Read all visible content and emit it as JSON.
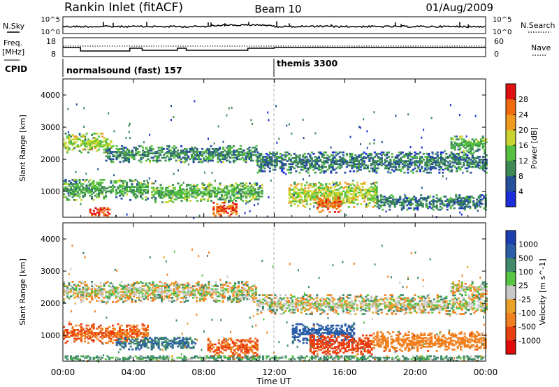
{
  "header": {
    "station": "Rankin Inlet (fitACF)",
    "beam": "Beam 10",
    "date": "01/Aug/2009"
  },
  "noise_panel": {
    "left_label": "N.Sky",
    "right_label": "N.Search",
    "left_ticks": [
      "10^5",
      "10^0"
    ],
    "right_ticks": [
      "10^5",
      "10^0"
    ]
  },
  "freq_panel": {
    "left_label_1": "Freq.",
    "left_label_2": "[MHz]",
    "right_label": "Nave",
    "left_ticks": [
      "18",
      "8"
    ],
    "right_ticks": [
      "60",
      "0"
    ]
  },
  "cpid_panel": {
    "label": "CPID",
    "segments": [
      {
        "name": "normalsound (fast) 157",
        "start_hour": 0
      },
      {
        "name": "themis 3300",
        "start_hour": 12
      }
    ]
  },
  "time_axis": {
    "label": "Time UT",
    "ticks": [
      "00:00",
      "04:00",
      "08:00",
      "12:00",
      "16:00",
      "20:00",
      "00:00"
    ]
  },
  "colors": {
    "power_scale": [
      "#1a2fd9",
      "#27509a",
      "#3d8a55",
      "#55c040",
      "#c9d430",
      "#f09a20",
      "#f06a10",
      "#e01010"
    ],
    "velocity_scale": [
      "#1c3fb0",
      "#2c5ea8",
      "#3f8a6a",
      "#57c444",
      "#c8c8c8",
      "#e8a028",
      "#f08020",
      "#e84010",
      "#e00a0a"
    ]
  },
  "chart_data": [
    {
      "type": "heatmap",
      "panel": "power",
      "ylabel": "Slant Range [km]",
      "ytick_labels": [
        "1000",
        "2000",
        "3000",
        "4000"
      ],
      "ylim": [
        200,
        4500
      ],
      "xlim_hours": [
        0,
        24
      ],
      "colorbar_label": "Power [dB]",
      "colorbar_ticks": [
        "4",
        "8",
        "12",
        "16",
        "20",
        "24",
        "28"
      ],
      "colorbar_range": [
        0,
        31
      ],
      "echo_bands": [
        {
          "start_hour": 0.0,
          "end_hour": 2.7,
          "center_km": 2500,
          "half_width_km": 300,
          "value": 16
        },
        {
          "start_hour": 2.4,
          "end_hour": 11.0,
          "center_km": 2150,
          "half_width_km": 250,
          "value": 10
        },
        {
          "start_hour": 11.0,
          "end_hour": 24.0,
          "center_km": 1900,
          "half_width_km": 330,
          "value": 9
        },
        {
          "start_hour": 22.0,
          "end_hour": 24.0,
          "center_km": 2450,
          "half_width_km": 250,
          "value": 12
        },
        {
          "start_hour": 0.0,
          "end_hour": 4.8,
          "center_km": 1050,
          "half_width_km": 330,
          "value": 12
        },
        {
          "start_hour": 5.0,
          "end_hour": 11.3,
          "center_km": 950,
          "half_width_km": 300,
          "value": 13
        },
        {
          "start_hour": 12.8,
          "end_hour": 17.8,
          "center_km": 900,
          "half_width_km": 400,
          "value": 17
        },
        {
          "start_hour": 17.8,
          "end_hour": 24.0,
          "center_km": 650,
          "half_width_km": 230,
          "value": 9
        },
        {
          "start_hour": 1.5,
          "end_hour": 2.6,
          "center_km": 350,
          "half_width_km": 150,
          "value": 28
        },
        {
          "start_hour": 8.5,
          "end_hour": 9.8,
          "center_km": 450,
          "half_width_km": 220,
          "value": 27
        },
        {
          "start_hour": 14.4,
          "end_hour": 15.7,
          "center_km": 600,
          "half_width_km": 250,
          "value": 26
        }
      ]
    },
    {
      "type": "heatmap",
      "panel": "velocity",
      "ylabel": "Slant Range [km]",
      "ytick_labels": [
        "1000",
        "2000",
        "3000",
        "4000"
      ],
      "ylim": [
        200,
        4500
      ],
      "xlim_hours": [
        0,
        24
      ],
      "colorbar_label": "Velocity [m s^-1]",
      "colorbar_ticks": [
        "1000",
        "500",
        "100",
        "25",
        "-25",
        "-100",
        "-500",
        "-1000"
      ],
      "echo_bands": [
        {
          "start_hour": 0.0,
          "end_hour": 11.0,
          "center_km": 2350,
          "half_width_km": 330,
          "value": 0
        },
        {
          "start_hour": 11.0,
          "end_hour": 24.0,
          "center_km": 1950,
          "half_width_km": 300,
          "value": 0
        },
        {
          "start_hour": 22.0,
          "end_hour": 24.0,
          "center_km": 2450,
          "half_width_km": 220,
          "value": 0
        },
        {
          "start_hour": 0.0,
          "end_hour": 4.8,
          "center_km": 1050,
          "half_width_km": 300,
          "value": -300
        },
        {
          "start_hour": 3.0,
          "end_hour": 7.5,
          "center_km": 750,
          "half_width_km": 200,
          "value": 300
        },
        {
          "start_hour": 8.2,
          "end_hour": 11.0,
          "center_km": 600,
          "half_width_km": 300,
          "value": -300
        },
        {
          "start_hour": 13.0,
          "end_hour": 16.5,
          "center_km": 1050,
          "half_width_km": 300,
          "value": 400
        },
        {
          "start_hour": 14.0,
          "end_hour": 17.5,
          "center_km": 700,
          "half_width_km": 300,
          "value": -400
        },
        {
          "start_hour": 17.5,
          "end_hour": 24.0,
          "center_km": 800,
          "half_width_km": 300,
          "value": -200
        },
        {
          "start_hour": 0.0,
          "end_hour": 24.0,
          "center_km": 280,
          "half_width_km": 80,
          "value": 80
        }
      ]
    }
  ]
}
